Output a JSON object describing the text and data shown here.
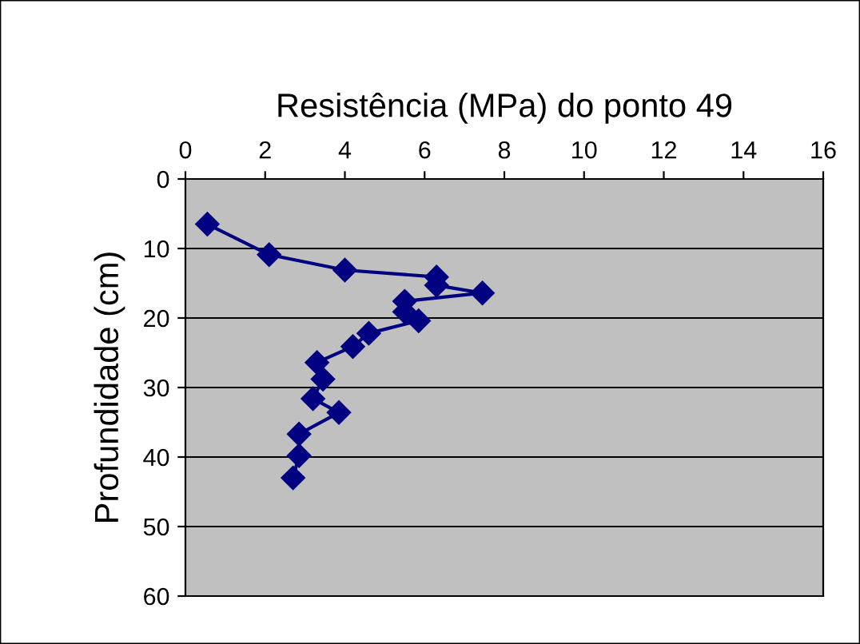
{
  "chart_data": {
    "type": "line",
    "title": "Resistência (MPa) do ponto 49",
    "ylabel": "Profundidade (cm)",
    "x": [
      0.55,
      2.1,
      4.0,
      6.3,
      6.3,
      7.45,
      5.5,
      5.5,
      5.85,
      4.6,
      4.2,
      3.3,
      3.45,
      3.2,
      3.85,
      2.85,
      2.85,
      2.7
    ],
    "values": [
      6.5,
      10.9,
      13.1,
      14.1,
      15.3,
      16.4,
      17.6,
      19.1,
      20.4,
      22.2,
      24.1,
      26.4,
      28.8,
      31.6,
      33.6,
      36.7,
      39.8,
      43.0
    ],
    "color": "#000080",
    "marker": "diamond",
    "line_style": "solid",
    "xlim": [
      0,
      16
    ],
    "xticks": [
      0,
      2,
      4,
      6,
      8,
      10,
      12,
      14,
      16
    ],
    "ylim": [
      60,
      0
    ],
    "yticks": [
      0,
      10,
      20,
      30,
      40,
      50,
      60
    ],
    "grid": "y"
  }
}
